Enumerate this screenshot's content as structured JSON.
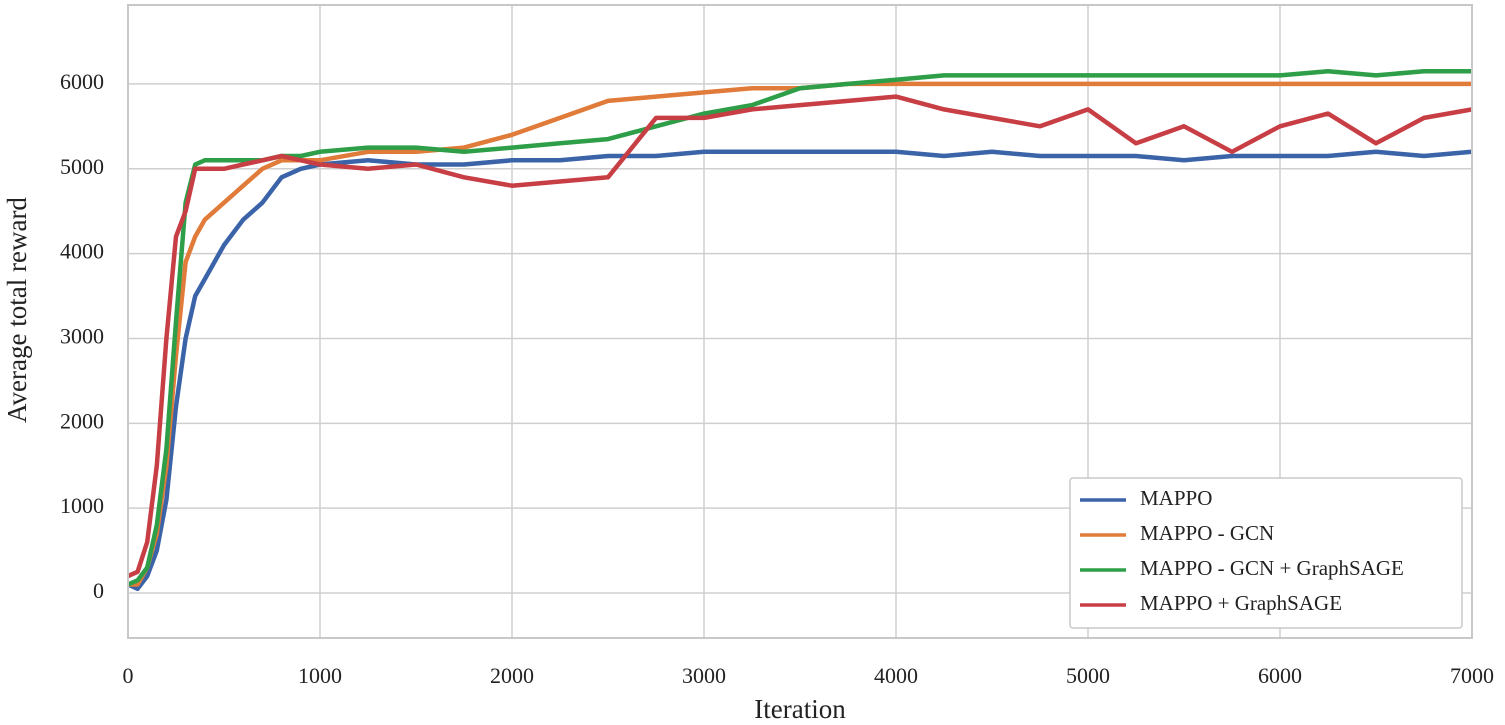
{
  "chart_data": {
    "type": "line",
    "xlabel": "Iteration",
    "ylabel": "Average total reward",
    "x": [
      0,
      50,
      100,
      150,
      200,
      250,
      300,
      350,
      400,
      500,
      600,
      700,
      800,
      900,
      1000,
      1250,
      1500,
      1750,
      2000,
      2250,
      2500,
      2750,
      3000,
      3250,
      3500,
      3750,
      4000,
      4250,
      4500,
      4750,
      5000,
      5250,
      5500,
      5750,
      6000,
      6250,
      6500,
      6750,
      7000
    ],
    "series": [
      {
        "name": "MAPPO",
        "color": "#3b64a8",
        "values": [
          100,
          50,
          200,
          500,
          1100,
          2200,
          3000,
          3500,
          3700,
          4100,
          4400,
          4600,
          4900,
          5000,
          5050,
          5100,
          5050,
          5050,
          5100,
          5100,
          5150,
          5150,
          5200,
          5200,
          5200,
          5200,
          5200,
          5150,
          5200,
          5150,
          5150,
          5150,
          5100,
          5150,
          5150,
          5150,
          5200,
          5150,
          5200
        ]
      },
      {
        "name": "MAPPO - GCN",
        "color": "#e07b39",
        "values": [
          100,
          100,
          300,
          700,
          1500,
          2800,
          3900,
          4200,
          4400,
          4600,
          4800,
          5000,
          5100,
          5100,
          5100,
          5200,
          5200,
          5250,
          5400,
          5600,
          5800,
          5850,
          5900,
          5950,
          5950,
          6000,
          6000,
          6000,
          6000,
          6000,
          6000,
          6000,
          6000,
          6000,
          6000,
          6000,
          6000,
          6000,
          6000
        ]
      },
      {
        "name": "MAPPO - GCN + GraphSAGE",
        "color": "#2e9e48",
        "values": [
          100,
          150,
          300,
          800,
          1700,
          3200,
          4600,
          5050,
          5100,
          5100,
          5100,
          5100,
          5150,
          5150,
          5200,
          5250,
          5250,
          5200,
          5250,
          5300,
          5350,
          5500,
          5650,
          5750,
          5950,
          6000,
          6050,
          6100,
          6100,
          6100,
          6100,
          6100,
          6100,
          6100,
          6100,
          6150,
          6100,
          6150,
          6150
        ]
      },
      {
        "name": "MAPPO + GraphSAGE",
        "color": "#c83e45",
        "values": [
          200,
          250,
          600,
          1500,
          3000,
          4200,
          4500,
          5000,
          5000,
          5000,
          5050,
          5100,
          5150,
          5100,
          5050,
          5000,
          5050,
          4900,
          4800,
          4850,
          4900,
          5600,
          5600,
          5700,
          5750,
          5800,
          5850,
          5700,
          5600,
          5500,
          5700,
          5300,
          5500,
          5200,
          5500,
          5650,
          5300,
          5600,
          5700
        ]
      }
    ],
    "xlim": [
      0,
      7000
    ],
    "xticks": [
      0,
      1000,
      2000,
      3000,
      4000,
      5000,
      6000,
      7000
    ],
    "ylim": [
      -530,
      6930
    ],
    "yticks": [
      0,
      1000,
      2000,
      3000,
      4000,
      5000,
      6000
    ],
    "grid": true,
    "legend": "lower right"
  }
}
